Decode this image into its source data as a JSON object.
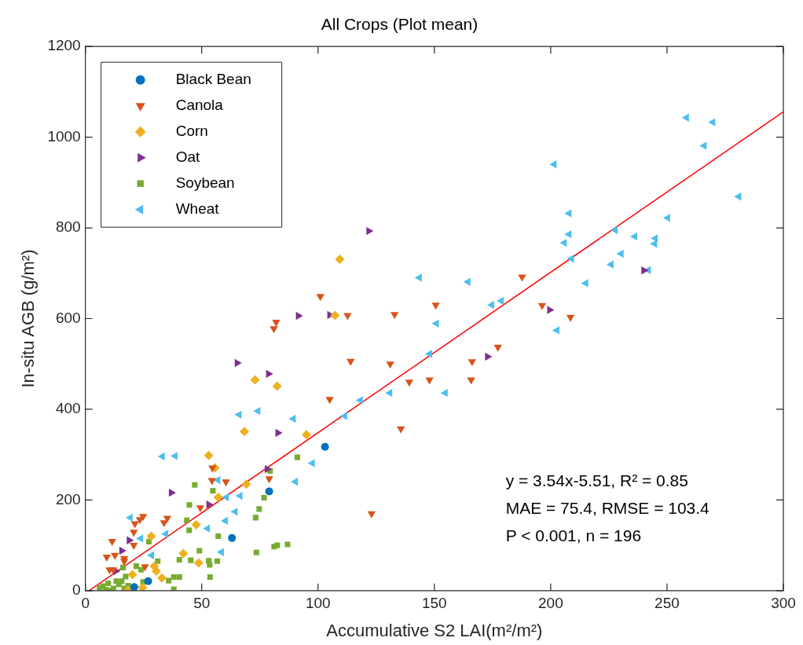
{
  "chart_data": {
    "type": "scatter",
    "title": "All Crops (Plot mean)",
    "xlabel": "Accumulative S2 LAI(m²/m²)",
    "ylabel": "In-situ AGB (g/m²)",
    "xlim": [
      0,
      300
    ],
    "xticks": [
      0,
      50,
      100,
      150,
      200,
      250,
      300
    ],
    "ylim": [
      0,
      1200
    ],
    "yticks": [
      0,
      200,
      400,
      600,
      800,
      1000,
      1200
    ],
    "grid": false,
    "legend": "top left",
    "annotations": [
      "y = 3.54x-5.51, R² = 0.85",
      "MAE = 75.4, RMSE = 103.4",
      "P < 0.001, n = 196"
    ],
    "series": [
      {
        "name": "Black Bean",
        "color": "#0072bd",
        "marker": "circle",
        "x": [
          103,
          79,
          63,
          27,
          21
        ],
        "values": [
          317,
          219,
          116,
          21,
          8
        ]
      },
      {
        "name": "Canola",
        "color": "#d95319",
        "marker": "triangle-down",
        "x": [
          101,
          82,
          81,
          112.7,
          114,
          105,
          79,
          60.4,
          123,
          131,
          187.7,
          132.9,
          150.6,
          196.3,
          208.5,
          177.3,
          166.2,
          165.8,
          139.2,
          147.9,
          135.6,
          24.8,
          23.4,
          21.3,
          20.8,
          20.8,
          11.5,
          12.7,
          9.2,
          16.7,
          16.7,
          25.6,
          35.2,
          33.8,
          49.4,
          54.4,
          54.6,
          10.4,
          12
        ],
        "values": [
          649,
          592,
          578,
          607,
          506,
          422,
          247,
          240,
          170,
          500,
          692,
          609,
          630,
          629,
          603,
          537,
          505,
          465,
          460,
          465,
          357,
          164,
          157,
          148,
          129,
          100,
          109,
          78,
          74,
          71,
          65,
          53,
          160,
          150,
          183,
          243,
          271,
          46,
          46
        ]
      },
      {
        "name": "Corn",
        "color": "#edb120",
        "marker": "diamond",
        "x": [
          109.3,
          107.3,
          72.9,
          82.4,
          68.3,
          95,
          69.2,
          57.1,
          55.7,
          53,
          47.6,
          28.3,
          42.1,
          48.7,
          29.6,
          30.5,
          20.2,
          32.9,
          24.6,
          18.4
        ],
        "values": [
          731,
          607,
          465,
          451,
          351,
          344,
          235,
          206,
          271,
          298,
          145,
          120,
          82,
          61,
          54,
          43,
          35,
          28,
          7,
          1
        ]
      },
      {
        "name": "Oat",
        "color": "#7e2f8e",
        "marker": "triangle-right",
        "x": [
          121.8,
          91.5,
          105,
          65.2,
          78.7,
          82.7,
          78.1,
          199.5,
          172.8,
          240,
          36.9,
          53,
          18.8,
          15.6,
          13
        ],
        "values": [
          793,
          606,
          608,
          502,
          478,
          348,
          268,
          619,
          516,
          706,
          216,
          190,
          111,
          88,
          43
        ]
      },
      {
        "name": "Soybean",
        "color": "#77ac30",
        "marker": "square",
        "x": [
          91.1,
          79.4,
          76.8,
          74.7,
          73.2,
          57.1,
          73.5,
          81.1,
          82.5,
          86.9,
          56.7,
          47,
          54.8,
          44.7,
          43.6,
          44.6,
          27.3,
          49,
          40.4,
          45.3,
          53,
          53.4,
          31.1,
          53.6,
          40.4,
          38,
          35.8,
          38,
          16.2,
          21.9,
          23.9,
          24.8,
          17.3,
          7.5,
          9.8,
          12.1,
          14.4,
          16.7,
          10.9,
          15.6,
          18.4,
          8.7,
          13.3,
          6.1
        ],
        "values": [
          294,
          264,
          205,
          180,
          161,
          120,
          84,
          97,
          100,
          102,
          65,
          233,
          220,
          189,
          155,
          133,
          108,
          88,
          68,
          67,
          66,
          57,
          65,
          30,
          30,
          30,
          22,
          3,
          51,
          54,
          46,
          19,
          31,
          10,
          16,
          5,
          14,
          5,
          0,
          21,
          11,
          2,
          21,
          6
        ]
      },
      {
        "name": "Wheat",
        "color": "#4dbeee",
        "marker": "triangle-left",
        "x": [
          258.4,
          269.7,
          266,
          280.9,
          250.3,
          227.8,
          236.2,
          245,
          244.7,
          230.3,
          226,
          242,
          215.1,
          201.5,
          207.9,
          207.9,
          205.9,
          209,
          143.6,
          164.5,
          174.7,
          178.8,
          150.9,
          202.7,
          148,
          130.9,
          154.7,
          118.2,
          111.5,
          66.1,
          74.2,
          89.4,
          97.6,
          90.3,
          57,
          66.5,
          60.6,
          64.4,
          60.2,
          58.5,
          33.1,
          38.6,
          19.3,
          23.8,
          34.6,
          28.5,
          52.5
        ],
        "values": [
          1043,
          1033,
          981,
          869,
          822,
          795,
          781,
          777,
          765,
          743,
          719,
          707,
          678,
          940,
          832,
          786,
          767,
          732,
          690,
          681,
          630,
          639,
          589,
          574,
          522,
          436,
          436,
          420,
          385,
          388,
          396,
          379,
          281,
          240,
          244,
          209,
          206,
          174,
          154,
          85,
          296,
          297,
          161,
          115,
          125,
          78,
          137
        ]
      },
      {
        "type": "line",
        "color": "#ff0000",
        "marker": "none",
        "line_style": "solid",
        "x": [
          1.56,
          300
        ],
        "values": [
          0,
          1056
        ]
      }
    ]
  }
}
